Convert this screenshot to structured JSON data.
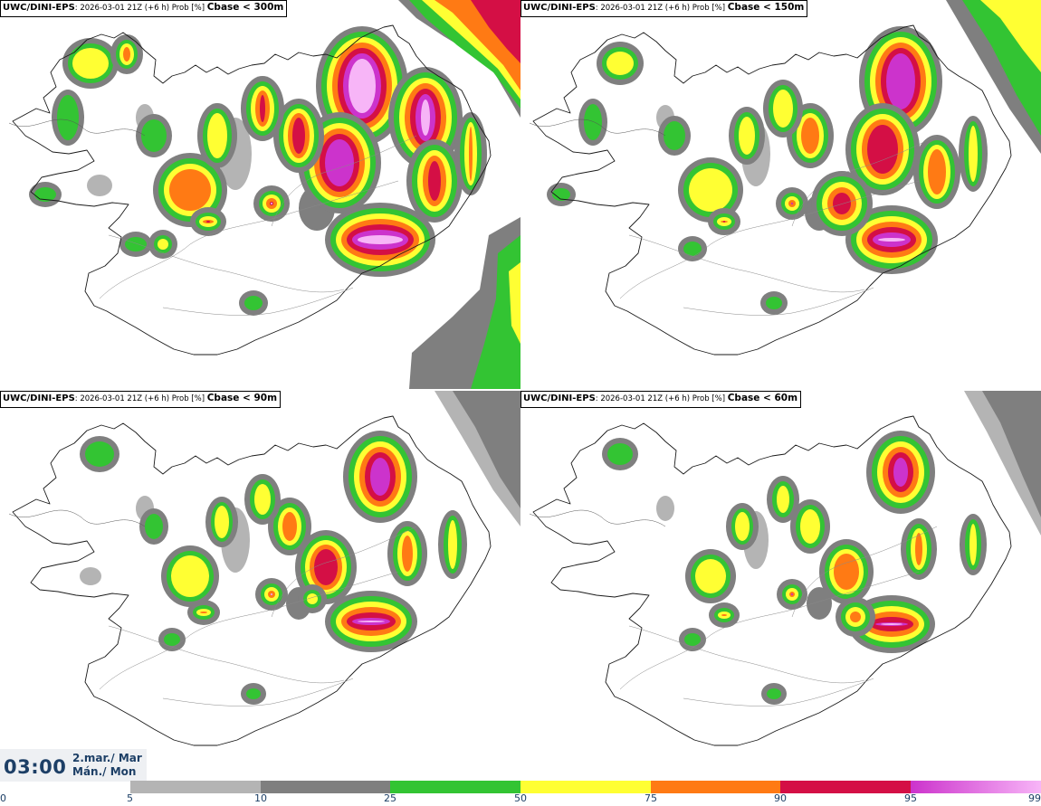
{
  "colors": {
    "bins": [
      "#ffffff",
      "#b4b4b4",
      "#7f7f7f",
      "#33c433",
      "#ffff33",
      "#ff7a14",
      "#d40f45",
      "#cc33cc",
      "#f7b5f7"
    ],
    "coast": "#1a1a1a",
    "text": "#1d3f66"
  },
  "panels": [
    {
      "source": "UWC/DINI-EPS",
      "meta": ": 2026-03-01 21Z (+6 h) Prob [%] ",
      "threshold": "Cbase < 300m"
    },
    {
      "source": "UWC/DINI-EPS",
      "meta": ": 2026-03-01 21Z (+6 h) Prob [%] ",
      "threshold": "Cbase < 150m"
    },
    {
      "source": "UWC/DINI-EPS",
      "meta": ": 2026-03-01 21Z (+6 h) Prob [%] ",
      "threshold": "Cbase < 90m"
    },
    {
      "source": "UWC/DINI-EPS",
      "meta": ": 2026-03-01 21Z (+6 h) Prob [%] ",
      "threshold": "Cbase < 60m"
    }
  ],
  "time": {
    "clock": "03:00",
    "date_line1": "2.mar./ Mar",
    "date_line2": "Mán./ Mon"
  },
  "colorbar": {
    "ticks": [
      "0",
      "5",
      "10",
      "25",
      "50",
      "75",
      "90",
      "95",
      "99"
    ]
  }
}
